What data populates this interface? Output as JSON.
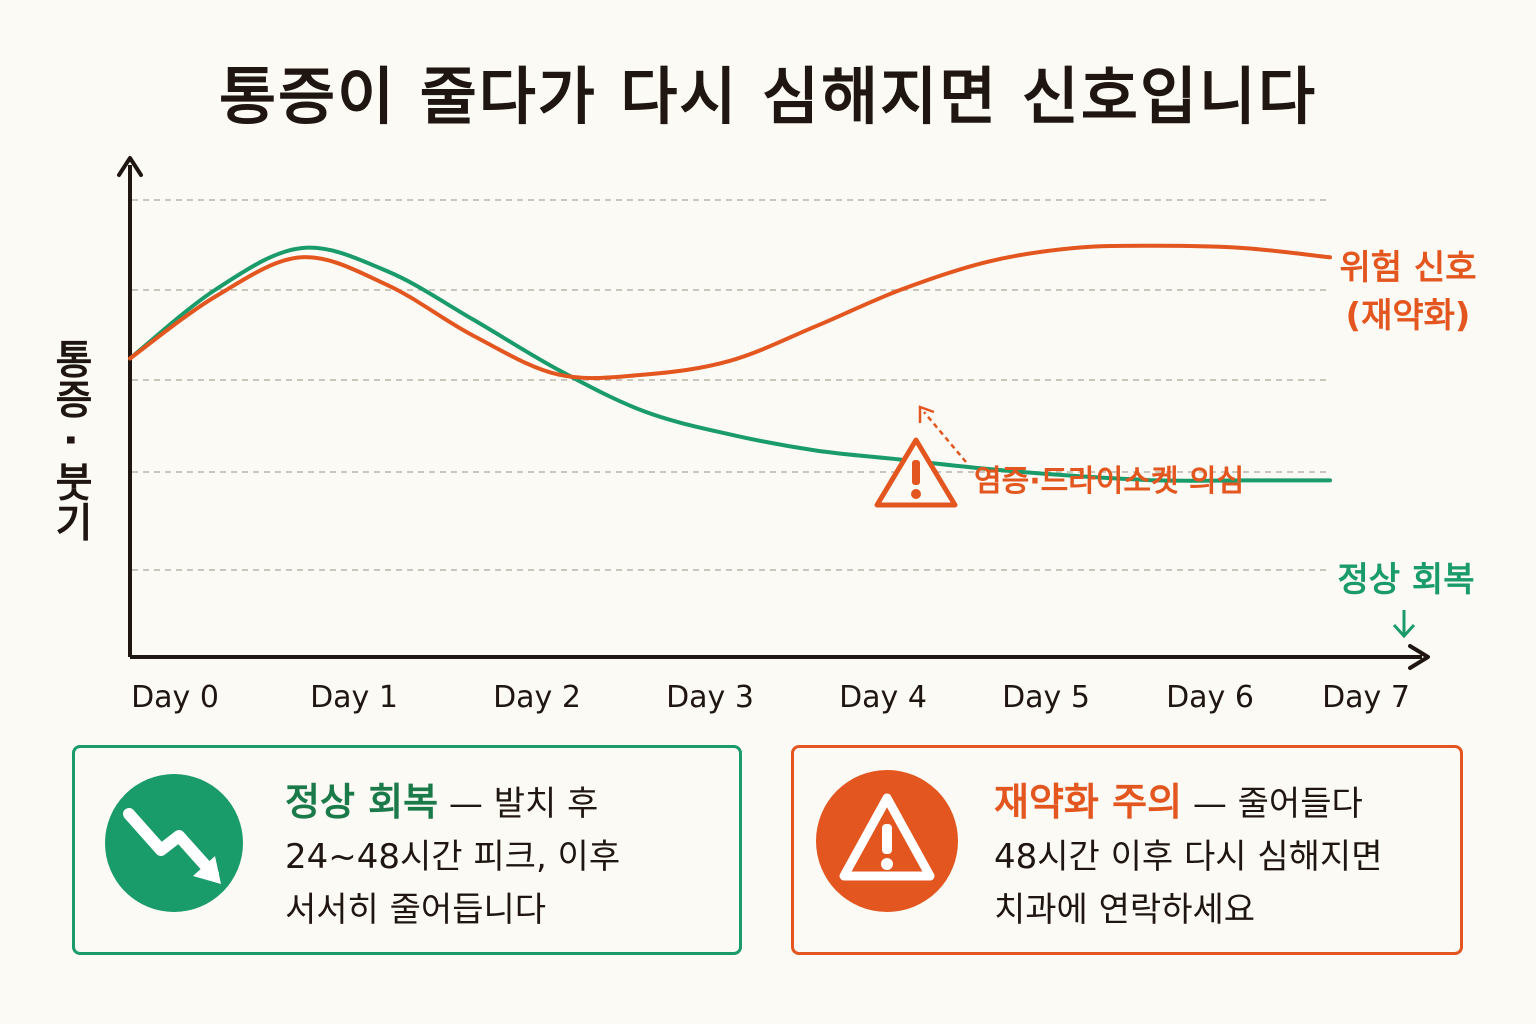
{
  "title": "통증이 줄다가 다시 심해지면 신호입니다",
  "chart_data": {
    "type": "line",
    "ylabel": "통증 · 붓기",
    "x_ticks": [
      "Day 0",
      "Day 1",
      "Day 2",
      "Day 3",
      "Day 4",
      "Day 5",
      "Day 6",
      "Day 7"
    ],
    "y_ticks_shown": false,
    "grid": "horizontal-dashed",
    "series": [
      {
        "name": "정상 회복",
        "color": "#1a9b6a",
        "x": [
          0,
          0.5,
          1,
          1.5,
          2,
          2.5,
          3,
          3.5,
          4,
          4.5,
          5,
          5.5,
          6,
          6.5,
          7
        ],
        "values": [
          0.45,
          0.75,
          0.93,
          0.83,
          0.62,
          0.4,
          0.22,
          0.12,
          0.05,
          0.01,
          -0.03,
          -0.06,
          -0.08,
          -0.08,
          -0.08
        ]
      },
      {
        "name": "위험 신호 (재약화)",
        "color": "#e3561f",
        "x": [
          0,
          0.5,
          1,
          1.5,
          2,
          2.5,
          3,
          3.5,
          4,
          4.5,
          5,
          5.5,
          6,
          6.5,
          7
        ],
        "values": [
          0.45,
          0.72,
          0.89,
          0.77,
          0.55,
          0.38,
          0.38,
          0.44,
          0.59,
          0.75,
          0.87,
          0.93,
          0.94,
          0.93,
          0.89
        ]
      }
    ],
    "annotations": {
      "danger_label_line1": "위험 신호",
      "danger_label_line2": "(재약화)",
      "normal_label": "정상 회복",
      "inflammation_note": "염증·드라이소켓 의심"
    }
  },
  "cards": {
    "normal": {
      "icon": "trend-down-arrow-icon",
      "heading": "정상 회복",
      "text": " — 발치 후\n24~48시간 피크, 이후\n서서히 줄어듭니다"
    },
    "warning": {
      "icon": "warning-triangle-icon",
      "heading": "재약화 주의",
      "text": " — 줄어들다\n48시간 이후 다시 심해지면\n치과에 연락하세요"
    }
  },
  "colors": {
    "green": "#1a9b6a",
    "orange": "#e3561f",
    "text": "#1f1611",
    "background": "#fcfaf4"
  }
}
